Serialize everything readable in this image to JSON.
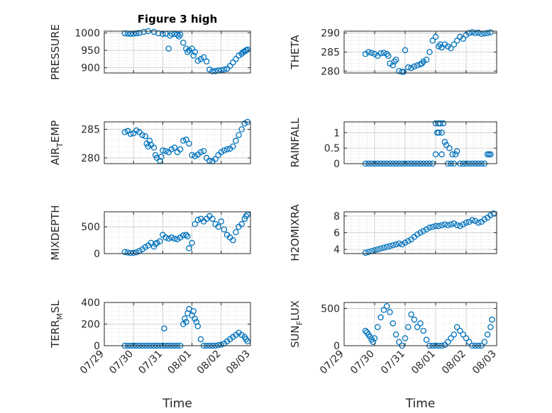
{
  "chart_data": [
    {
      "id": "pressure",
      "type": "scatter",
      "title": "Figure 3 high",
      "ylabel": [
        "PRESSURE"
      ],
      "xlim": [
        "07/29",
        "08/03"
      ],
      "ylim": [
        885,
        1005
      ],
      "yticks": [
        900,
        950,
        1000
      ],
      "xticklabels": false,
      "x": [
        0.7,
        0.8,
        0.9,
        1.0,
        1.1,
        1.2,
        1.35,
        1.5,
        1.7,
        1.85,
        2.0,
        2.1,
        2.2,
        2.25,
        2.3,
        2.4,
        2.5,
        2.55,
        2.6,
        2.7,
        2.8,
        2.85,
        2.9,
        3.0,
        3.05,
        3.1,
        3.2,
        3.3,
        3.4,
        3.5,
        3.6,
        3.7,
        3.8,
        3.9,
        4.0,
        4.1,
        4.2,
        4.3,
        4.4,
        4.5,
        4.6,
        4.7,
        4.75,
        4.8,
        4.85,
        4.9
      ],
      "y": [
        999,
        998,
        997,
        998,
        999,
        1000,
        1003,
        1005,
        1003,
        999,
        997,
        998,
        955,
        992,
        998,
        997,
        995,
        990,
        995,
        972,
        955,
        945,
        950,
        955,
        935,
        945,
        920,
        925,
        930,
        918,
        895,
        890,
        890,
        892,
        893,
        895,
        897,
        905,
        915,
        925,
        935,
        940,
        945,
        947,
        950,
        952
      ]
    },
    {
      "id": "theta",
      "type": "scatter",
      "ylabel": [
        "THETA"
      ],
      "xlim": [
        "07/29",
        "08/03"
      ],
      "ylim": [
        279.5,
        290.5
      ],
      "yticks": [
        280,
        285,
        290
      ],
      "xticklabels": false,
      "x": [
        0.7,
        0.8,
        0.9,
        1.0,
        1.1,
        1.2,
        1.3,
        1.4,
        1.45,
        1.5,
        1.6,
        1.65,
        1.7,
        1.8,
        1.9,
        1.95,
        2.0,
        2.1,
        2.2,
        2.3,
        2.4,
        2.5,
        2.55,
        2.6,
        2.7,
        2.8,
        2.9,
        3.0,
        3.1,
        3.15,
        3.2,
        3.3,
        3.4,
        3.5,
        3.6,
        3.7,
        3.8,
        3.9,
        4.0,
        4.1,
        4.2,
        4.3,
        4.4,
        4.5,
        4.6,
        4.7,
        4.8
      ],
      "y": [
        284.5,
        285,
        284.8,
        284.5,
        284,
        284.7,
        284.8,
        284.5,
        284,
        282,
        281.5,
        282.5,
        283,
        280,
        279.8,
        279.8,
        285.5,
        281,
        280.8,
        281.2,
        281.5,
        281.8,
        282,
        282.5,
        283,
        285,
        288,
        289,
        286.5,
        287,
        286.2,
        287,
        286.5,
        286,
        287,
        288,
        289,
        288.5,
        289.5,
        290,
        290.2,
        290,
        290.1,
        289.8,
        289.9,
        290,
        290.2
      ]
    },
    {
      "id": "air_temp",
      "type": "scatter",
      "ylabel": [
        "AIR",
        "T",
        "EMP"
      ],
      "xlim": [
        "07/29",
        "08/03"
      ],
      "ylim": [
        279,
        286.3
      ],
      "yticks": [
        280,
        285
      ],
      "xticklabels": false,
      "x": [
        0.7,
        0.8,
        0.9,
        1.0,
        1.1,
        1.2,
        1.3,
        1.4,
        1.45,
        1.5,
        1.55,
        1.6,
        1.7,
        1.75,
        1.8,
        1.9,
        1.95,
        2.0,
        2.1,
        2.2,
        2.3,
        2.4,
        2.5,
        2.6,
        2.7,
        2.8,
        2.9,
        3.0,
        3.1,
        3.2,
        3.3,
        3.4,
        3.5,
        3.6,
        3.7,
        3.8,
        3.9,
        4.0,
        4.1,
        4.2,
        4.3,
        4.4,
        4.5,
        4.6,
        4.7,
        4.8,
        4.9
      ],
      "y": [
        284.5,
        284.7,
        284.2,
        284.3,
        284.8,
        284.5,
        284,
        283.8,
        282.5,
        282,
        283,
        282.3,
        281.8,
        280.5,
        280,
        279.5,
        280.2,
        281.3,
        281.2,
        281,
        281.5,
        281.8,
        281,
        281.5,
        283,
        283.2,
        282.5,
        280.5,
        280.3,
        280.6,
        281,
        281.2,
        280,
        279.5,
        279.4,
        279.8,
        280.5,
        281,
        281.3,
        281.5,
        281.6,
        282,
        283,
        284,
        285,
        286,
        286.3
      ]
    },
    {
      "id": "rainfall",
      "type": "scatter",
      "ylabel": [
        "RAINFALL"
      ],
      "xlim": [
        "07/29",
        "08/03"
      ],
      "ylim": [
        0,
        1.35
      ],
      "yticks": [
        0,
        0.5,
        1
      ],
      "ytick_labels": [
        "0",
        "0.5",
        "1"
      ],
      "xticklabels": false,
      "x": [
        0.7,
        0.8,
        0.9,
        1.0,
        1.1,
        1.2,
        1.3,
        1.4,
        1.5,
        1.6,
        1.7,
        1.8,
        1.9,
        2.0,
        2.1,
        2.2,
        2.3,
        2.4,
        2.5,
        2.6,
        2.7,
        2.8,
        2.9,
        3.0,
        3.0,
        3.05,
        3.1,
        3.1,
        3.15,
        3.2,
        3.2,
        3.25,
        3.3,
        3.35,
        3.4,
        3.45,
        3.5,
        3.55,
        3.6,
        3.65,
        3.7,
        3.8,
        3.9,
        4.0,
        4.1,
        4.2,
        4.3,
        4.4,
        4.5,
        4.6,
        4.7,
        4.75,
        4.8
      ],
      "y": [
        0,
        0,
        0,
        0,
        0,
        0,
        0,
        0,
        0,
        0,
        0,
        0,
        0,
        0,
        0,
        0,
        0,
        0,
        0,
        0,
        0,
        0,
        0,
        0.3,
        1.3,
        1.0,
        1.3,
        1.0,
        1.3,
        1.0,
        0.3,
        1.3,
        0.7,
        0.6,
        0,
        0.5,
        0,
        0.3,
        0,
        0.3,
        0.4,
        0,
        0,
        0,
        0,
        0,
        0,
        0,
        0,
        0,
        0.3,
        0.3,
        0.3
      ]
    },
    {
      "id": "mixdepth",
      "type": "scatter",
      "ylabel": [
        "MIXDEPTH"
      ],
      "xlim": [
        "07/29",
        "08/03"
      ],
      "ylim": [
        0,
        780
      ],
      "yticks": [
        0,
        500
      ],
      "xticklabels": false,
      "x": [
        0.7,
        0.8,
        0.9,
        1.0,
        1.1,
        1.2,
        1.3,
        1.4,
        1.5,
        1.6,
        1.7,
        1.75,
        1.8,
        1.9,
        2.0,
        2.1,
        2.2,
        2.3,
        2.4,
        2.5,
        2.6,
        2.7,
        2.8,
        2.85,
        2.9,
        3.0,
        3.1,
        3.2,
        3.3,
        3.4,
        3.5,
        3.6,
        3.7,
        3.8,
        3.9,
        4.0,
        4.1,
        4.2,
        4.3,
        4.4,
        4.5,
        4.6,
        4.7,
        4.8,
        4.85,
        4.9
      ],
      "y": [
        30,
        20,
        10,
        15,
        25,
        50,
        80,
        120,
        150,
        200,
        130,
        180,
        200,
        230,
        350,
        300,
        280,
        300,
        280,
        270,
        300,
        340,
        350,
        320,
        100,
        200,
        550,
        630,
        650,
        600,
        650,
        700,
        650,
        550,
        500,
        600,
        450,
        350,
        300,
        250,
        400,
        500,
        550,
        650,
        700,
        730
      ]
    },
    {
      "id": "h2omixra",
      "type": "scatter",
      "ylabel": [
        "H2OMIXRA"
      ],
      "xlim": [
        "07/29",
        "08/03"
      ],
      "ylim": [
        3.5,
        8.5
      ],
      "yticks": [
        4,
        6,
        8
      ],
      "xticklabels": false,
      "x": [
        0.7,
        0.8,
        0.9,
        1.0,
        1.1,
        1.2,
        1.3,
        1.4,
        1.5,
        1.6,
        1.7,
        1.8,
        1.9,
        2.0,
        2.1,
        2.2,
        2.3,
        2.4,
        2.5,
        2.6,
        2.7,
        2.8,
        2.9,
        3.0,
        3.1,
        3.2,
        3.3,
        3.4,
        3.5,
        3.6,
        3.7,
        3.8,
        3.9,
        4.0,
        4.1,
        4.2,
        4.3,
        4.4,
        4.5,
        4.6,
        4.7,
        4.8,
        4.9
      ],
      "y": [
        3.6,
        3.7,
        3.8,
        3.9,
        4.0,
        4.1,
        4.2,
        4.3,
        4.4,
        4.5,
        4.6,
        4.7,
        4.6,
        4.8,
        5.0,
        5.2,
        5.5,
        5.8,
        6.0,
        6.2,
        6.4,
        6.6,
        6.7,
        6.8,
        6.8,
        6.9,
        7.0,
        6.9,
        7.0,
        7.1,
        6.9,
        6.8,
        7.0,
        7.2,
        7.3,
        7.5,
        7.4,
        7.2,
        7.3,
        7.6,
        7.8,
        8.1,
        8.3
      ]
    },
    {
      "id": "terr_msl",
      "type": "scatter",
      "ylabel": [
        "TERR",
        "M",
        "SL"
      ],
      "xlim": [
        "07/29",
        "08/03"
      ],
      "ylim": [
        0,
        400
      ],
      "yticks": [
        0,
        200,
        400
      ],
      "xticks": [
        "07/29",
        "07/30",
        "07/31",
        "08/01",
        "08/02",
        "08/03"
      ],
      "xlabel": "Time",
      "x": [
        0.7,
        0.8,
        0.9,
        1.0,
        1.1,
        1.2,
        1.3,
        1.4,
        1.5,
        1.6,
        1.7,
        1.8,
        1.9,
        2.0,
        2.05,
        2.1,
        2.2,
        2.3,
        2.4,
        2.5,
        2.6,
        2.7,
        2.75,
        2.8,
        2.85,
        2.9,
        3.0,
        3.05,
        3.1,
        3.15,
        3.2,
        3.3,
        3.4,
        3.5,
        3.6,
        3.7,
        3.8,
        3.9,
        4.0,
        4.1,
        4.2,
        4.3,
        4.4,
        4.5,
        4.6,
        4.7,
        4.8,
        4.85,
        4.9
      ],
      "y": [
        0,
        0,
        0,
        0,
        0,
        0,
        0,
        0,
        0,
        0,
        0,
        0,
        0,
        0,
        160,
        0,
        0,
        0,
        0,
        0,
        0,
        200,
        250,
        220,
        300,
        340,
        280,
        320,
        250,
        220,
        180,
        60,
        0,
        0,
        0,
        0,
        0,
        5,
        10,
        20,
        40,
        60,
        80,
        100,
        120,
        100,
        80,
        60,
        40
      ]
    },
    {
      "id": "sunflux",
      "type": "scatter",
      "ylabel": [
        "SUN",
        "F",
        "LUX"
      ],
      "xlim": [
        "07/29",
        "08/03"
      ],
      "ylim": [
        0,
        580
      ],
      "yticks": [
        0,
        500
      ],
      "xticks": [
        "07/29",
        "07/30",
        "07/31",
        "08/01",
        "08/02",
        "08/03"
      ],
      "xlabel": "Time",
      "x": [
        0.7,
        0.75,
        0.8,
        0.85,
        0.9,
        0.95,
        1.0,
        1.1,
        1.2,
        1.3,
        1.4,
        1.5,
        1.6,
        1.7,
        1.8,
        1.9,
        2.0,
        2.1,
        2.2,
        2.3,
        2.4,
        2.5,
        2.6,
        2.7,
        2.8,
        2.9,
        3.0,
        3.1,
        3.2,
        3.3,
        3.4,
        3.5,
        3.6,
        3.7,
        3.8,
        3.9,
        4.0,
        4.1,
        4.2,
        4.3,
        4.4,
        4.5,
        4.6,
        4.7,
        4.8,
        4.85
      ],
      "y": [
        200,
        180,
        150,
        120,
        80,
        50,
        100,
        250,
        380,
        480,
        530,
        450,
        300,
        150,
        50,
        0,
        100,
        250,
        420,
        350,
        250,
        300,
        200,
        80,
        0,
        0,
        0,
        0,
        0,
        10,
        50,
        100,
        150,
        250,
        200,
        150,
        100,
        50,
        0,
        0,
        0,
        0,
        50,
        150,
        250,
        350
      ]
    }
  ]
}
